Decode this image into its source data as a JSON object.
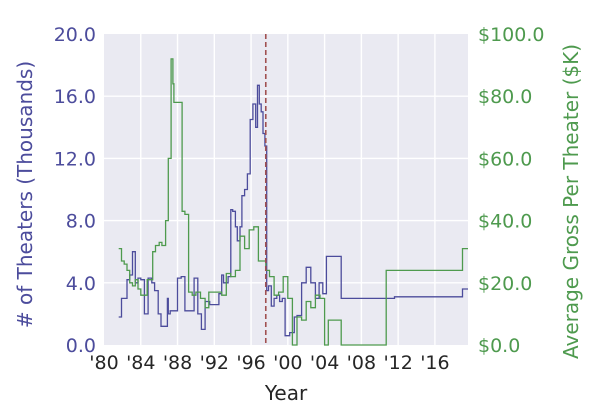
{
  "chart_data": {
    "type": "line",
    "title": "",
    "xlabel": "Year",
    "ylabel_left": "# of Theaters (Thousands)",
    "ylabel_right": "Average Gross Per Theater ($K)",
    "xlim": [
      1980,
      2019.6
    ],
    "ylim_left": [
      0,
      20
    ],
    "ylim_right": [
      0,
      100
    ],
    "grid": true,
    "legend": "none",
    "colors": {
      "plot_bg": "#EAEAF2",
      "grid": "#FFFFFF",
      "theaters": "#4C4C9C",
      "gross": "#4E9A4E",
      "vline": "#A05050",
      "left_axis_text": "#4C4C9C",
      "right_axis_text": "#4E9A4E",
      "x_axis_text": "#262626"
    },
    "x_ticks": [
      {
        "value": 1980,
        "label": "'80"
      },
      {
        "value": 1984,
        "label": "'84"
      },
      {
        "value": 1988,
        "label": "'88"
      },
      {
        "value": 1992,
        "label": "'92"
      },
      {
        "value": 1996,
        "label": "'96"
      },
      {
        "value": 2000,
        "label": "'00"
      },
      {
        "value": 2004,
        "label": "'04"
      },
      {
        "value": 2008,
        "label": "'08"
      },
      {
        "value": 2012,
        "label": "'12"
      },
      {
        "value": 2016,
        "label": "'16"
      }
    ],
    "y_ticks_left": [
      {
        "value": 0,
        "label": "0.0"
      },
      {
        "value": 4,
        "label": "4.0"
      },
      {
        "value": 8,
        "label": "8.0"
      },
      {
        "value": 12,
        "label": "12.0"
      },
      {
        "value": 16,
        "label": "16.0"
      },
      {
        "value": 20,
        "label": "20.0"
      }
    ],
    "y_ticks_right": [
      {
        "value": 0,
        "label": "$0.0"
      },
      {
        "value": 20,
        "label": "$20.0"
      },
      {
        "value": 40,
        "label": "$40.0"
      },
      {
        "value": 60,
        "label": "$60.0"
      },
      {
        "value": 80,
        "label": "$80.0"
      },
      {
        "value": 100,
        "label": "$100.0"
      }
    ],
    "vline_x": 1997.6,
    "series": [
      {
        "axis": "left",
        "x": [
          1981.6,
          1981.9,
          1982.2,
          1982.5,
          1982.8,
          1983.1,
          1983.4,
          1983.7,
          1984.0,
          1984.4,
          1984.8,
          1985.2,
          1985.5,
          1985.9,
          1986.2,
          1986.6,
          1986.9,
          1987.0,
          1987.2,
          1987.5,
          1988.0,
          1988.4,
          1988.8,
          1989.2,
          1989.8,
          1990.2,
          1990.6,
          1991.0,
          1991.5,
          1992.0,
          1992.5,
          1992.8,
          1993.0,
          1993.5,
          1993.8,
          1994.0,
          1994.3,
          1994.5,
          1994.8,
          1995.0,
          1995.3,
          1995.6,
          1995.9,
          1996.2,
          1996.5,
          1996.7,
          1996.9,
          1997.1,
          1997.3,
          1997.5,
          1997.7,
          1997.9,
          1998.2,
          1998.5,
          1998.8,
          1999.1,
          1999.4,
          1999.7,
          2000.2,
          2000.7,
          2001.0,
          2001.5,
          2002.0,
          2002.5,
          2003.0,
          2003.4,
          2003.8,
          2004.2,
          2004.6,
          2004.8,
          2005.2,
          2005.8,
          2011.6,
          2011.9,
          2014.3,
          2019.0,
          2019.6
        ],
        "y": [
          1.8,
          3.0,
          3.0,
          4.2,
          4.5,
          6.0,
          4.0,
          4.3,
          4.2,
          2.0,
          4.3,
          4.0,
          3.5,
          2.0,
          1.2,
          1.2,
          3.0,
          2.0,
          2.2,
          2.2,
          4.3,
          4.4,
          2.2,
          2.2,
          4.3,
          2.0,
          1.0,
          2.8,
          2.6,
          2.6,
          3.3,
          4.5,
          4.0,
          4.4,
          8.7,
          8.6,
          7.6,
          6.7,
          7.6,
          9.6,
          10.0,
          11.0,
          14.5,
          15.5,
          14.0,
          16.7,
          15.5,
          15.0,
          13.6,
          12.8,
          3.5,
          3.8,
          2.5,
          3.0,
          3.2,
          2.8,
          3.0,
          0.6,
          0.8,
          1.8,
          1.9,
          4.0,
          5.0,
          4.0,
          3.0,
          4.0,
          3.3,
          5.7,
          5.7,
          5.7,
          5.7,
          3.0,
          3.1,
          3.1,
          3.1,
          3.6,
          3.6
        ]
      },
      {
        "axis": "right",
        "x": [
          1981.6,
          1981.9,
          1982.2,
          1982.5,
          1982.8,
          1983.1,
          1983.4,
          1983.7,
          1984.0,
          1984.3,
          1984.7,
          1985.0,
          1985.3,
          1985.6,
          1986.0,
          1986.3,
          1986.7,
          1987.0,
          1987.3,
          1987.5,
          1987.6,
          1987.8,
          1988.0,
          1988.2,
          1988.5,
          1988.8,
          1989.2,
          1989.6,
          1990.0,
          1990.5,
          1991.0,
          1991.4,
          1991.8,
          1992.3,
          1992.8,
          1993.3,
          1993.8,
          1994.3,
          1994.8,
          1995.3,
          1995.8,
          1996.3,
          1996.8,
          1997.2,
          1997.6,
          1998.0,
          1998.5,
          1999.0,
          1999.5,
          2000.0,
          2000.5,
          2001.0,
          2001.5,
          2002.0,
          2002.5,
          2003.0,
          2003.5,
          2004.0,
          2004.4,
          2004.8,
          2005.3,
          2005.8,
          2010.4,
          2010.7,
          2013.9,
          2019.0,
          2019.6
        ],
        "y": [
          31,
          27,
          26,
          24,
          20,
          19,
          21,
          18,
          16,
          16,
          21,
          21,
          30,
          32,
          33,
          32,
          40,
          60,
          92,
          84,
          78,
          78,
          78,
          78,
          43,
          42,
          17,
          16,
          17,
          15,
          12,
          17,
          17,
          17,
          16,
          23,
          22,
          24,
          35,
          31,
          37,
          38,
          27,
          27,
          24,
          22,
          16,
          17,
          22,
          15,
          0,
          9,
          8,
          14,
          12,
          16,
          15,
          0,
          8,
          8,
          8,
          0,
          0,
          24,
          24,
          31,
          31
        ]
      }
    ]
  }
}
